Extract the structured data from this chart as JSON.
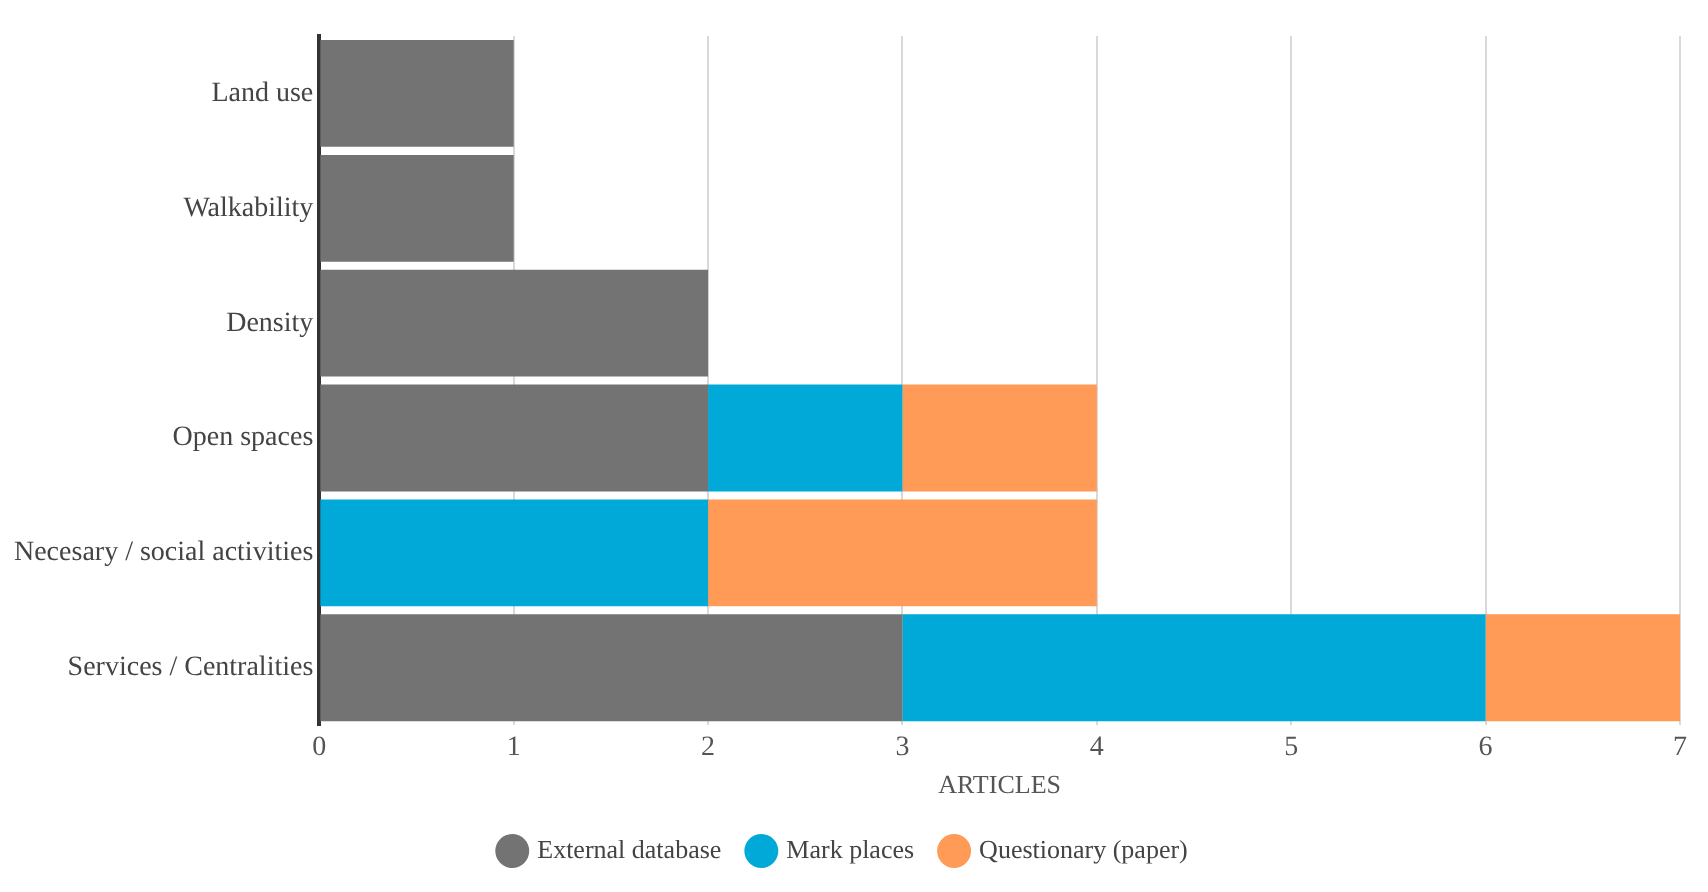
{
  "chart_data": {
    "type": "bar",
    "orientation": "horizontal",
    "stacked": true,
    "xlabel": "ARTICLES",
    "categories": [
      "Land use",
      "Walkability",
      "Density",
      "Open spaces",
      "Necesary / social activities",
      "Services / Centralities"
    ],
    "series": [
      {
        "name": "External database",
        "color": "#737373",
        "values": [
          1,
          1,
          2,
          2,
          null,
          3
        ]
      },
      {
        "name": "Mark places",
        "color": "#00a9d8",
        "values": [
          null,
          null,
          null,
          1,
          2,
          3
        ]
      },
      {
        "name": "Questionary (paper)",
        "color": "#ff9a57",
        "values": [
          null,
          null,
          null,
          1,
          2,
          1
        ]
      }
    ],
    "xlim": [
      0,
      7
    ],
    "xticks": [
      0,
      1,
      2,
      3,
      4,
      5,
      6,
      7
    ],
    "grid": "x",
    "legend": "bottom",
    "marker": "circle"
  }
}
